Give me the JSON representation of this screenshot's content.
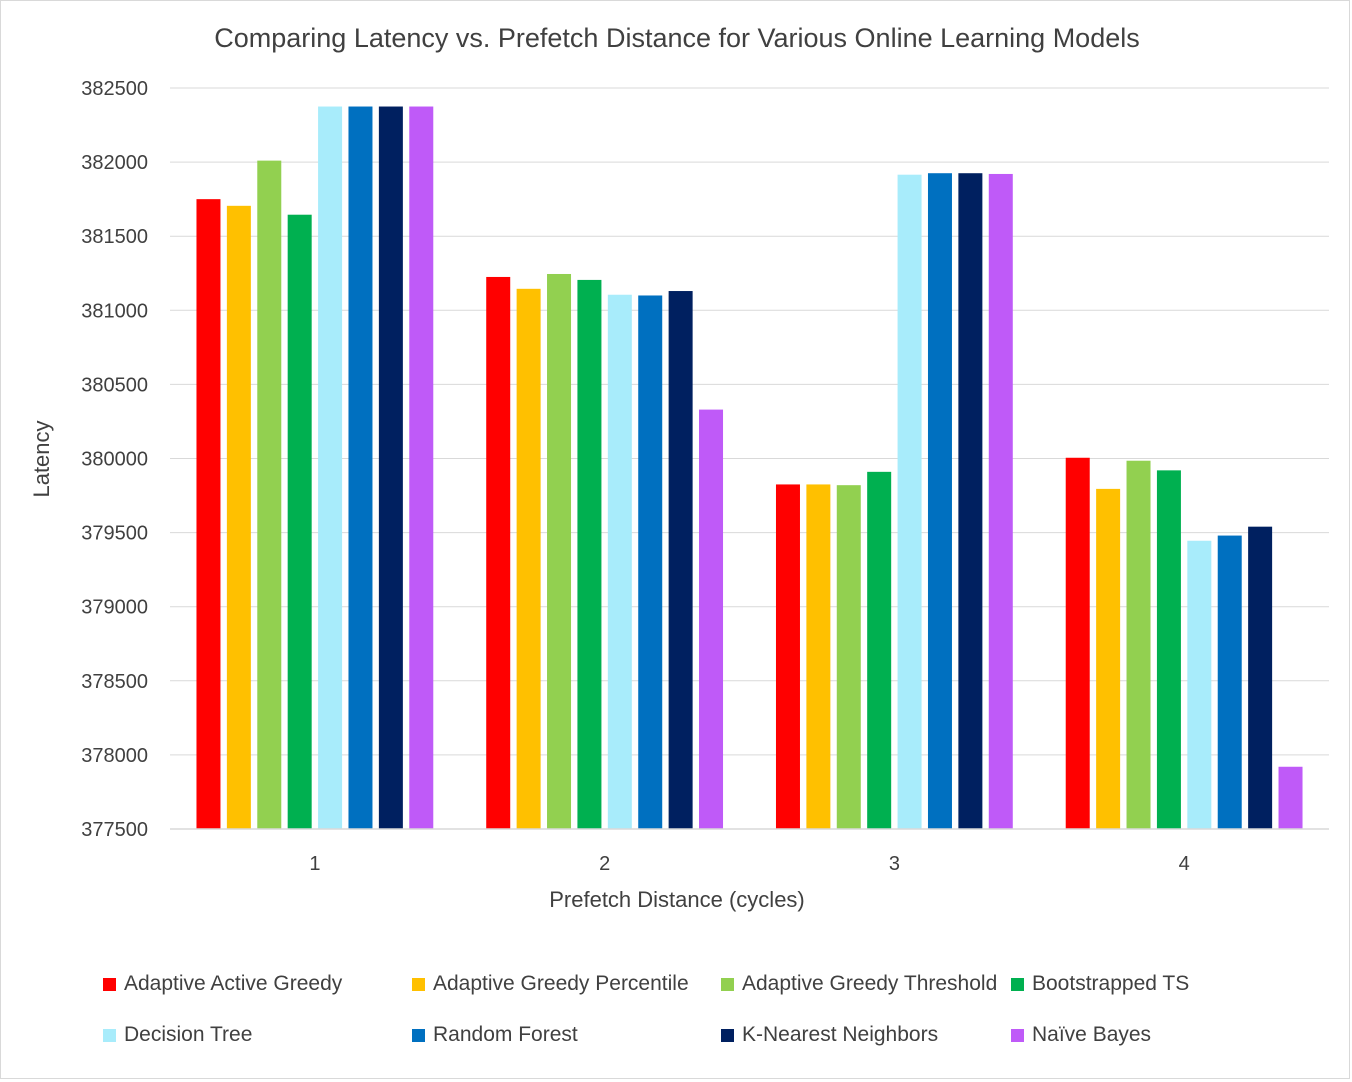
{
  "chart_data": {
    "type": "bar",
    "title": "Comparing Latency vs. Prefetch Distance for Various Online Learning Models",
    "xlabel": "Prefetch Distance (cycles)",
    "ylabel": "Latency",
    "ylim": [
      377500,
      382500
    ],
    "yticks": [
      377500,
      378000,
      378500,
      379000,
      379500,
      380000,
      380500,
      381000,
      381500,
      382000,
      382500
    ],
    "grid": true,
    "legend_position": "bottom",
    "categories": [
      "1",
      "2",
      "3",
      "4"
    ],
    "series": [
      {
        "name": "Adaptive Active Greedy",
        "color": "#ff0000",
        "values": [
          381750,
          381225,
          379825,
          380005
        ]
      },
      {
        "name": "Adaptive Greedy Percentile",
        "color": "#ffc000",
        "values": [
          381705,
          381145,
          379825,
          379795
        ]
      },
      {
        "name": "Adaptive Greedy Threshold",
        "color": "#92d050",
        "values": [
          382010,
          381245,
          379820,
          379985
        ]
      },
      {
        "name": "Bootstrapped TS",
        "color": "#00b050",
        "values": [
          381645,
          381205,
          379910,
          379920
        ]
      },
      {
        "name": "Decision Tree",
        "color": "#a8ecfb",
        "values": [
          382375,
          381105,
          381915,
          379445
        ]
      },
      {
        "name": "Random Forest",
        "color": "#0070c0",
        "values": [
          382375,
          381100,
          381925,
          379480
        ]
      },
      {
        "name": "K-Nearest Neighbors",
        "color": "#002060",
        "values": [
          382375,
          381130,
          381925,
          379540
        ]
      },
      {
        "name": "Naïve Bayes",
        "color": "#bf5af8",
        "values": [
          382375,
          380330,
          381920,
          377920
        ]
      }
    ]
  }
}
